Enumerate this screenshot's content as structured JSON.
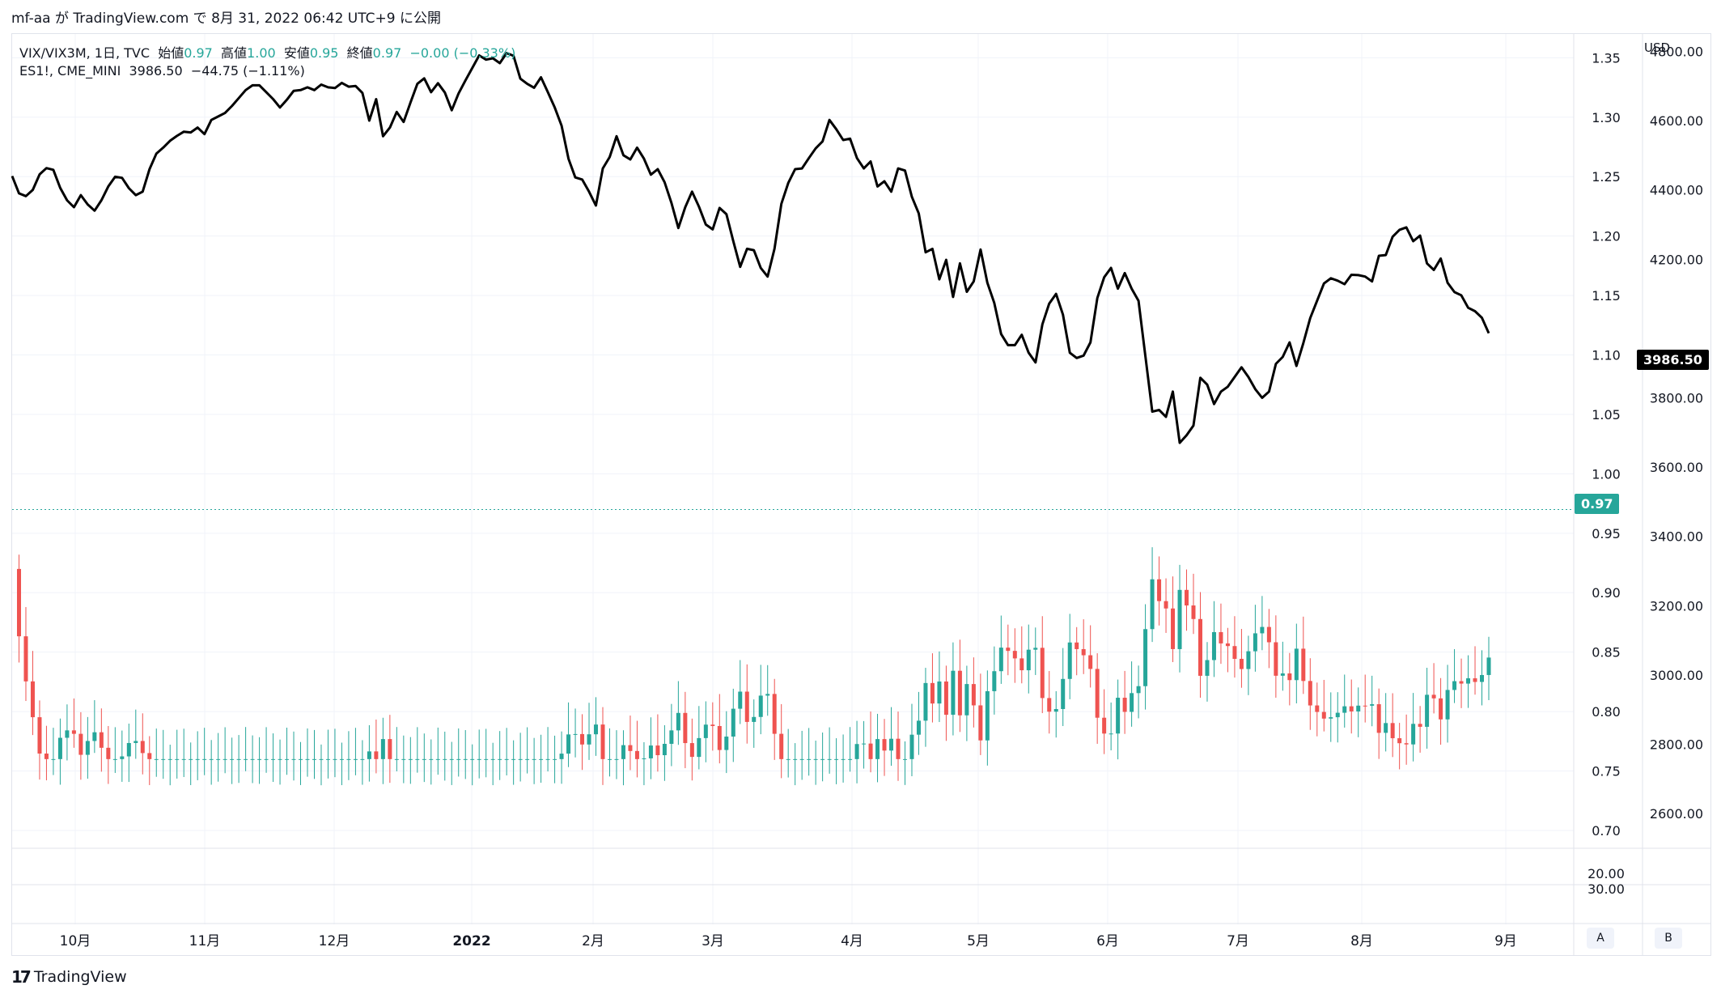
{
  "header": {
    "caption": "mf-aa が TradingView.com で 8月 31, 2022 06:42 UTC+9 に公開"
  },
  "legend": {
    "line1": {
      "symbol": "VIX/VIX3M, 1日, TVC",
      "open_label": "始値",
      "open": "0.97",
      "high_label": "高値",
      "high": "1.00",
      "low_label": "安値",
      "low": "0.95",
      "close_label": "終値",
      "close": "0.97",
      "change": "−0.00 (−0.33%)"
    },
    "line2": {
      "symbol": "ES1!, CME_MINI",
      "price": "3986.50",
      "change": "−44.75 (−1.11%)"
    }
  },
  "axes": {
    "unit": "USD",
    "right_labels": [
      "1.35",
      "1.30",
      "1.25",
      "1.20",
      "1.15",
      "1.10",
      "1.05",
      "1.00",
      "0.95",
      "0.90",
      "0.85",
      "0.80",
      "0.75",
      "0.70"
    ],
    "usd_labels": [
      "4800.00",
      "4600.00",
      "4400.00",
      "4200.00",
      "3800.00",
      "3600.00",
      "3400.00",
      "3200.00",
      "3000.00",
      "2800.00",
      "2600.00"
    ],
    "lower_labels": [
      "20.00",
      "30.00"
    ],
    "x_labels": [
      "10月",
      "11月",
      "12月",
      "2022",
      "2月",
      "3月",
      "4月",
      "5月",
      "6月",
      "7月",
      "8月",
      "9月"
    ],
    "x_bold": "2022"
  },
  "badges": {
    "ratio": "0.97",
    "es": "3986.50"
  },
  "buttons": {
    "a": "A",
    "b": "B"
  },
  "brand": {
    "name": "TradingView"
  },
  "colors": {
    "up": "#26a69a",
    "down": "#ef5350",
    "line": "#000000",
    "grid": "#f0f3fa"
  },
  "chart_data": {
    "type": "line",
    "title": "",
    "series": [
      {
        "name": "ES1!, CME_MINI",
        "kind": "line",
        "axis": "USD",
        "values": [
          4440,
          4390,
          4382,
          4400,
          4445,
          4463,
          4458,
          4406,
          4370,
          4350,
          4385,
          4358,
          4340,
          4370,
          4410,
          4438,
          4435,
          4405,
          4385,
          4395,
          4460,
          4505,
          4522,
          4542,
          4556,
          4568,
          4566,
          4580,
          4561,
          4602,
          4612,
          4622,
          4642,
          4665,
          4688,
          4702,
          4702,
          4682,
          4662,
          4638,
          4660,
          4686,
          4688,
          4696,
          4688,
          4704,
          4696,
          4694,
          4709,
          4698,
          4700,
          4680,
          4600,
          4662,
          4555,
          4580,
          4625,
          4596,
          4652,
          4706,
          4722,
          4682,
          4708,
          4681,
          4630,
          4678,
          4716,
          4752,
          4788,
          4776,
          4780,
          4766,
          4795,
          4787,
          4721,
          4706,
          4695,
          4725,
          4682,
          4638,
          4585,
          4490,
          4436,
          4430,
          4395,
          4355,
          4462,
          4495,
          4555,
          4500,
          4488,
          4522,
          4490,
          4444,
          4460,
          4422,
          4362,
          4290,
          4350,
          4395,
          4352,
          4300,
          4286,
          4348,
          4330,
          4252,
          4178,
          4230,
          4226,
          4175,
          4150,
          4230,
          4360,
          4420,
          4460,
          4462,
          4492,
          4520,
          4540,
          4602,
          4575,
          4544,
          4548,
          4492,
          4462,
          4482,
          4410,
          4425,
          4395,
          4462,
          4456,
          4380,
          4332,
          4220,
          4230,
          4142,
          4198,
          4091,
          4188,
          4106,
          4136,
          4228,
          4132,
          4074,
          3984,
          3952,
          3952,
          3982,
          3930,
          3902,
          4012,
          4072,
          4100,
          4040,
          3930,
          3915,
          3922,
          3960,
          4088,
          4148,
          4175,
          4115,
          4160,
          4115,
          4080,
          3920,
          3760,
          3765,
          3745,
          3818,
          3670,
          3692,
          3720,
          3858,
          3838,
          3782,
          3818,
          3832,
          3860,
          3888,
          3860,
          3825,
          3800,
          3818,
          3898,
          3918,
          3960,
          3892,
          3958,
          4030,
          4080,
          4130,
          4145,
          4138,
          4128,
          4155,
          4154,
          4150,
          4136,
          4210,
          4212,
          4265,
          4285,
          4292,
          4252,
          4268,
          4188,
          4169,
          4202,
          4132,
          4105,
          4096,
          4060,
          4050,
          4031,
          3986.5
        ],
        "ylim": [
          2500,
          4850
        ]
      },
      {
        "name": "VIX/VIX3M, 1日, TVC",
        "kind": "candlestick",
        "axis": "ratio",
        "note": "Daily candles; 0.97 close on last bar",
        "ylim": [
          0.685,
          1.37
        ]
      }
    ],
    "x_labels": [
      "10月",
      "11月",
      "12月",
      "2022",
      "2月",
      "3月",
      "4月",
      "5月",
      "6月",
      "7月",
      "8月",
      "9月"
    ],
    "ratio_axis_ticks": [
      1.35,
      1.3,
      1.25,
      1.2,
      1.15,
      1.1,
      1.05,
      1.0,
      0.95,
      0.9,
      0.85,
      0.8,
      0.75,
      0.7
    ],
    "usd_axis_ticks": [
      4800,
      4600,
      4400,
      4200,
      3800,
      3600,
      3400,
      3200,
      3000,
      2800,
      2600
    ],
    "current_ratio": 0.97,
    "current_es": 3986.5,
    "grid": true
  }
}
